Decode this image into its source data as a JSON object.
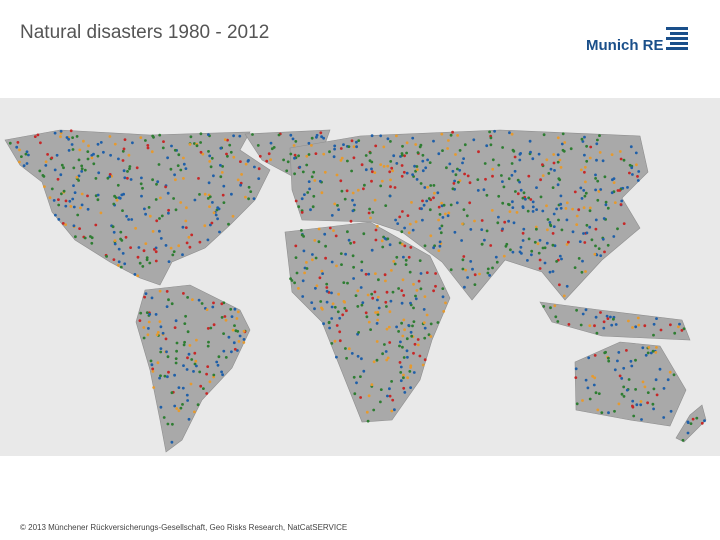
{
  "header": {
    "title": "Natural disasters 1980 - 2012",
    "logo": "Munich RE"
  },
  "footer": {
    "copyright": "© 2013 Münchener Rückversicherungs-Gesellschaft, Geo Risks Research, NatCatSERVICE"
  }
}
